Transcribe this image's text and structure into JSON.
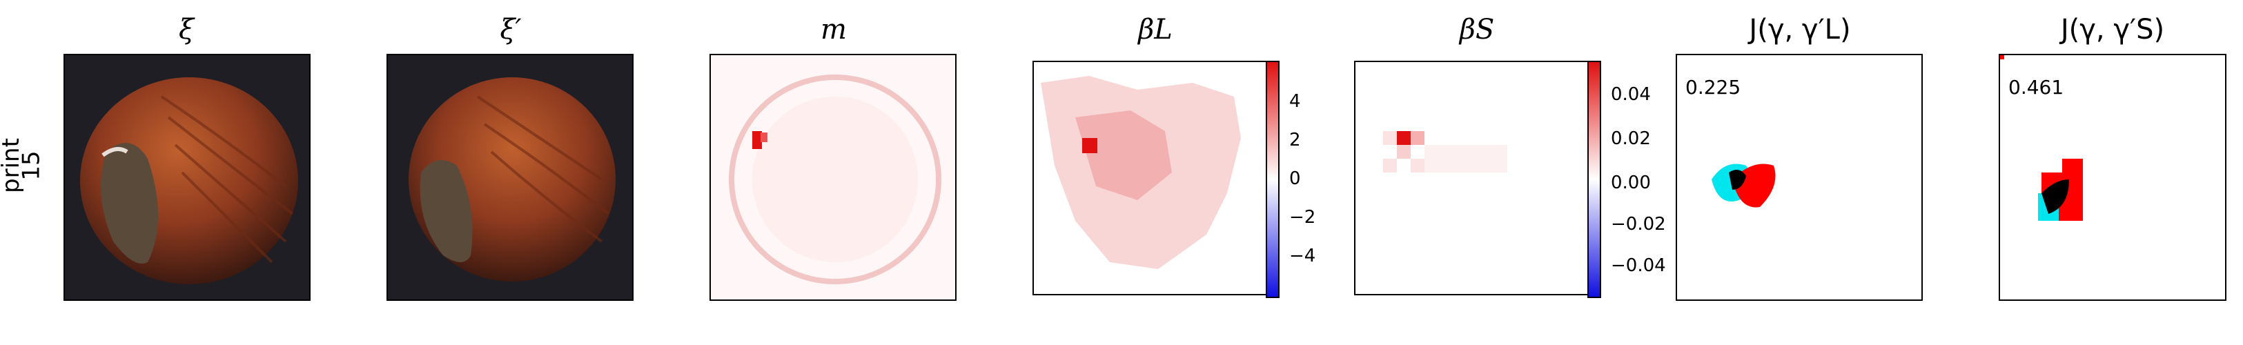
{
  "row_label_line1": "print",
  "row_label_line2": "15",
  "panels": [
    {
      "title": "ξ"
    },
    {
      "title": "ξ′"
    },
    {
      "title": "m"
    },
    {
      "title": "βL",
      "colorbar_ticks": [
        "4",
        "2",
        "0",
        "−2",
        "−4"
      ]
    },
    {
      "title": "βS",
      "colorbar_ticks": [
        "0.04",
        "0.02",
        "0.00",
        "−0.02",
        "−0.04"
      ]
    },
    {
      "title": "J(γ, γ′L)",
      "score": "0.225"
    },
    {
      "title": "J(γ, γ′S)",
      "score": "0.461"
    }
  ],
  "colors": {
    "nut_dark": "#2b1a14",
    "nut_mid": "#8e3a1f",
    "nut_light": "#b5552b",
    "heat_red": "#e01010",
    "heat_blue": "#1010e0",
    "overlay_cyan": "#00e5ee",
    "overlay_red": "#ff0000",
    "overlay_black": "#000000"
  }
}
